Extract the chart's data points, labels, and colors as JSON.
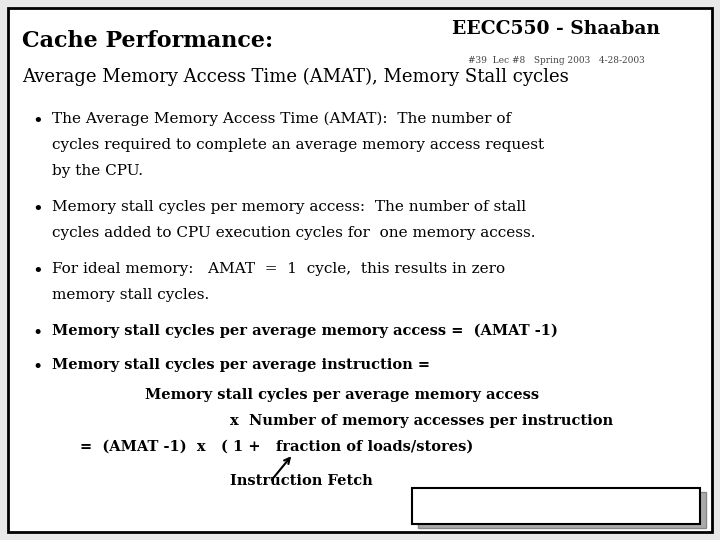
{
  "title_bold": "Cache Performance:",
  "subtitle": "Average Memory Access Time (AMAT), Memory Stall cycles",
  "bullet1_line1": "The Average Memory Access Time (AMAT):  The number of",
  "bullet1_line2": "cycles required to complete an average memory access request",
  "bullet1_line3": "by the CPU.",
  "bullet2_line1": "Memory stall cycles per memory access:  The number of stall",
  "bullet2_line2": "cycles added to CPU execution cycles for  one memory access.",
  "bullet3_line1": "For ideal memory:   AMAT  =  1  cycle,  this results in zero",
  "bullet3_line2": "memory stall cycles.",
  "bullet4": "Memory stall cycles per average memory access =  (AMAT -1)",
  "bullet5": "Memory stall cycles per average instruction =",
  "indent1": "Memory stall cycles per average memory access",
  "indent2": "x  Number of memory accesses per instruction",
  "indent3": "=  (AMAT -1)  x   ( 1 +   fraction of loads/stores)",
  "arrow_label": "Instruction Fetch",
  "footer_main": "EECC550 - Shaaban",
  "footer_sub": "#39  Lec #8   Spring 2003   4-28-2003",
  "bg_color": "#e8e8e8",
  "slide_bg": "#ffffff",
  "text_color": "#000000",
  "border_color": "#000000"
}
